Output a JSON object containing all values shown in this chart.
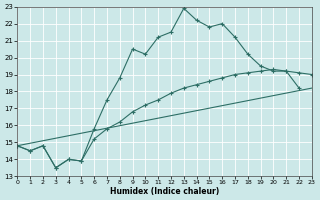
{
  "xlabel": "Humidex (Indice chaleur)",
  "xlim": [
    0,
    23
  ],
  "ylim": [
    13,
    23
  ],
  "xticks": [
    0,
    1,
    2,
    3,
    4,
    5,
    6,
    7,
    8,
    9,
    10,
    11,
    12,
    13,
    14,
    15,
    16,
    17,
    18,
    19,
    20,
    21,
    22,
    23
  ],
  "yticks": [
    13,
    14,
    15,
    16,
    17,
    18,
    19,
    20,
    21,
    22,
    23
  ],
  "background_color": "#cce8e8",
  "line_color": "#2d6e65",
  "grid_color": "#b8d8d8",
  "line1_x": [
    0,
    1,
    2,
    3,
    4,
    5,
    6,
    7,
    8,
    9,
    10,
    11,
    12,
    13,
    14,
    15,
    16,
    17,
    18,
    19,
    20,
    21,
    22
  ],
  "line1_y": [
    14.8,
    14.5,
    14.8,
    13.5,
    14.0,
    13.9,
    15.8,
    17.5,
    18.8,
    20.5,
    20.2,
    21.2,
    21.5,
    22.9,
    22.2,
    21.8,
    22.0,
    21.2,
    20.2,
    19.5,
    19.2,
    19.2,
    18.2
  ],
  "line2_x": [
    0,
    1,
    2,
    3,
    4,
    5,
    6,
    7,
    8,
    9,
    10,
    11,
    12,
    13,
    14,
    15,
    16,
    17,
    18,
    19,
    20,
    21,
    22,
    23
  ],
  "line2_y": [
    14.8,
    14.5,
    14.8,
    13.5,
    14.0,
    13.9,
    15.2,
    15.8,
    16.2,
    16.8,
    17.2,
    17.5,
    17.9,
    18.2,
    18.4,
    18.6,
    18.8,
    19.0,
    19.1,
    19.2,
    19.3,
    19.2,
    19.1,
    19.0
  ],
  "line3_x": [
    0,
    23
  ],
  "line3_y": [
    14.8,
    18.2
  ]
}
